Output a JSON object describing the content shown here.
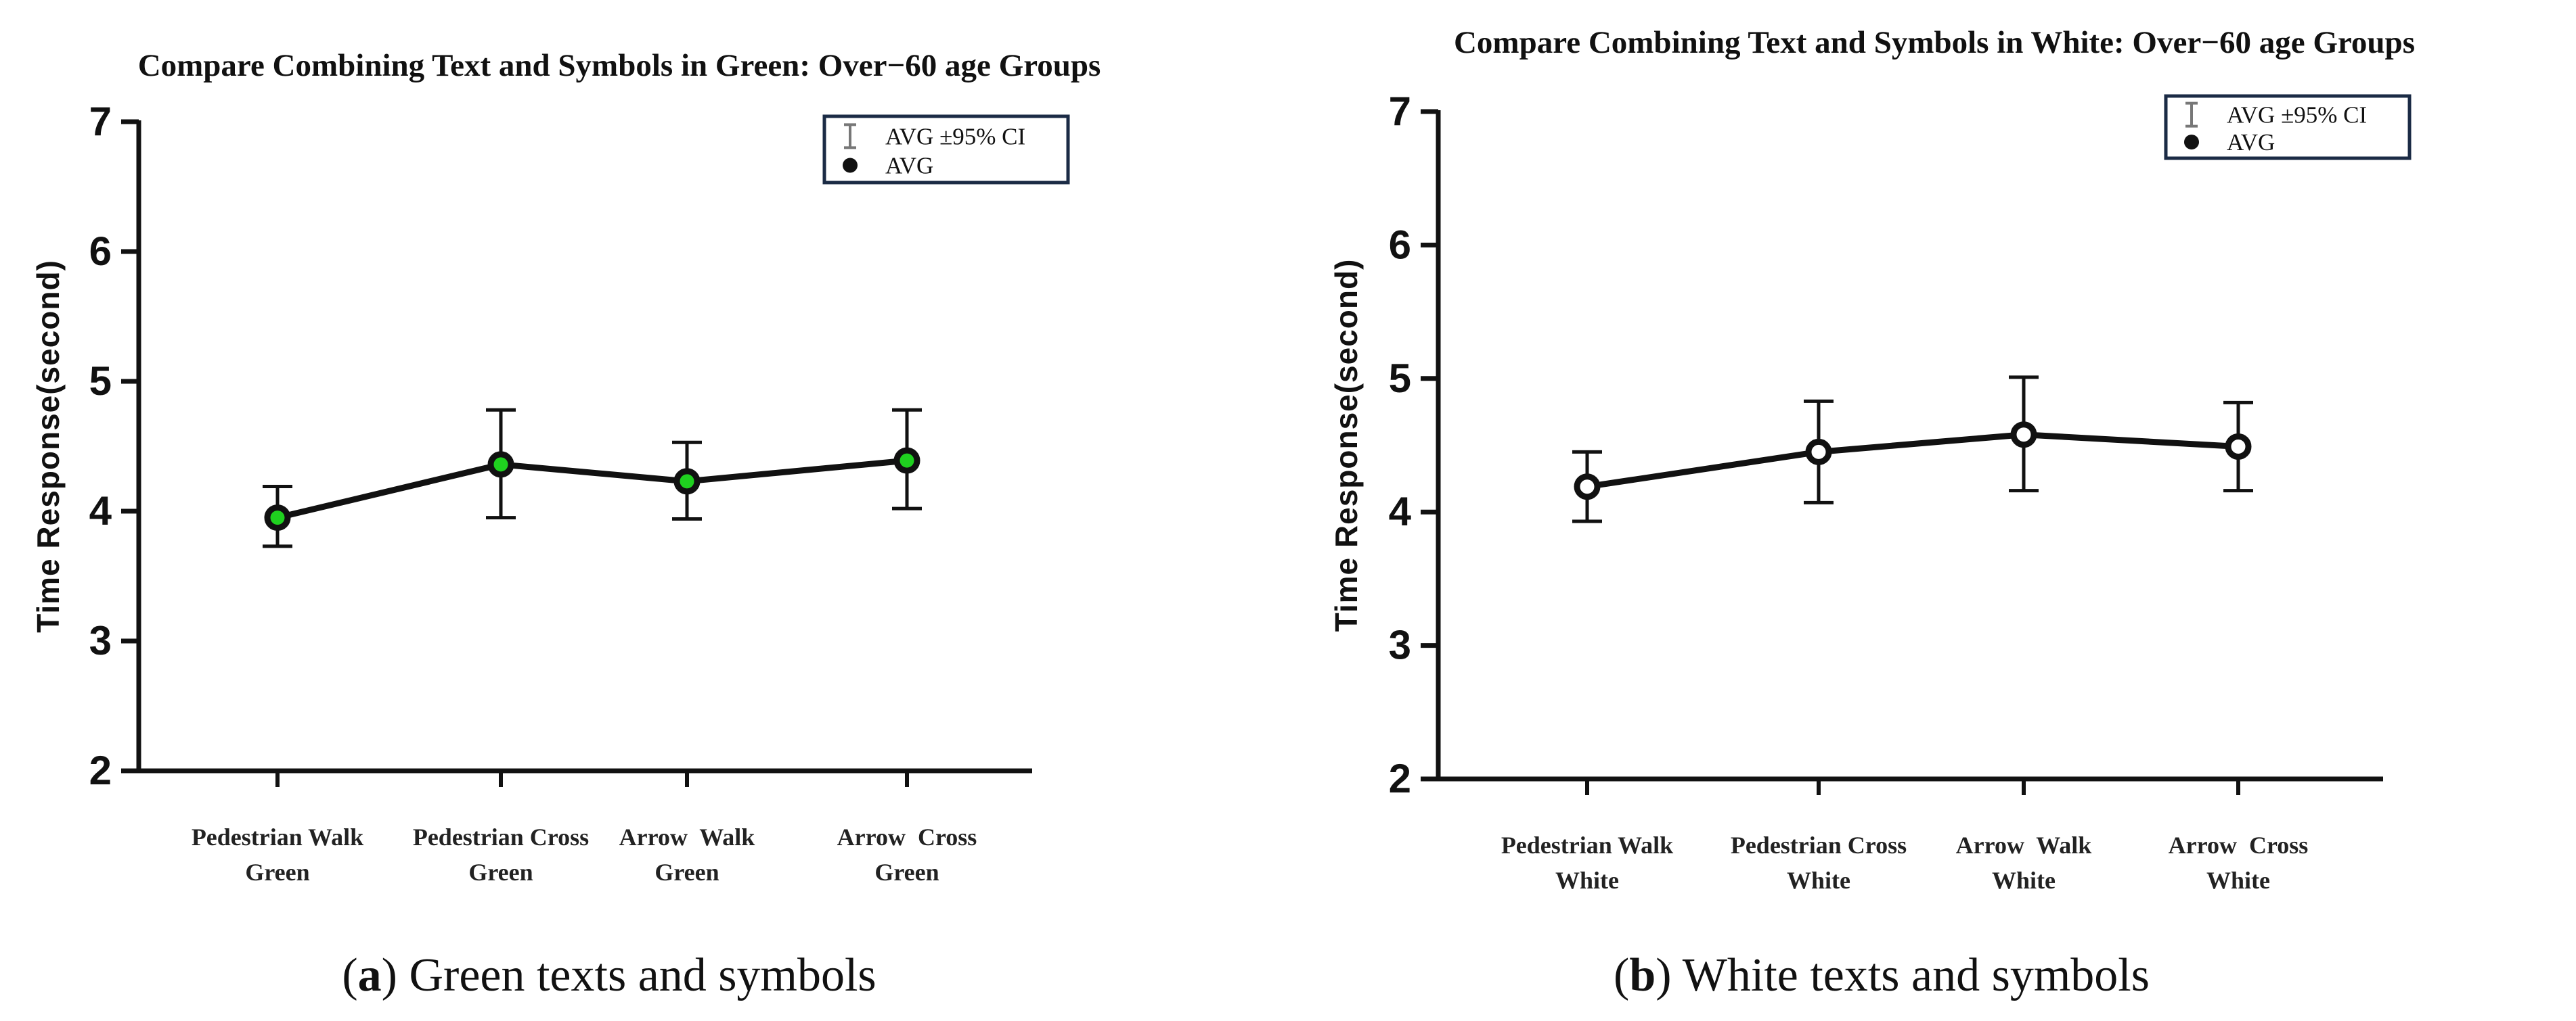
{
  "colors": {
    "axis": "#111111",
    "line": "#111111",
    "green_marker": "#1fd11f",
    "white_marker": "#ffffff",
    "legend_border": "#1b2b45",
    "errorbar_legend": "#777777"
  },
  "legend": {
    "ci_label": "AVG ±95% CI",
    "avg_label": "AVG"
  },
  "chart_data": [
    {
      "type": "line",
      "title": "Compare Combining Text and Symbols in Green: Over−60 age Groups",
      "ylabel": "Time Response(second)",
      "xlabel": "",
      "ylim": [
        2,
        7
      ],
      "yticks": [
        "2",
        "3",
        "4",
        "5",
        "6",
        "7"
      ],
      "categories": [
        [
          "Pedestrian Walk",
          "Green"
        ],
        [
          "Pedestrian Cross",
          "Green"
        ],
        [
          "Arrow  Walk",
          "Green"
        ],
        [
          "Arrow  Cross",
          "Green"
        ]
      ],
      "series": [
        {
          "name": "AVG",
          "marker_fill": "#1fd11f",
          "values": [
            3.95,
            4.36,
            4.23,
            4.39
          ],
          "ci_low": [
            3.73,
            3.95,
            3.94,
            4.02
          ],
          "ci_high": [
            4.19,
            4.78,
            4.53,
            4.78
          ]
        }
      ],
      "legend_position": "top-right",
      "caption_letter": "a",
      "caption_text": "Green texts and symbols"
    },
    {
      "type": "line",
      "title": "Compare Combining Text and Symbols in White: Over−60 age Groups",
      "ylabel": "Time Response(second)",
      "xlabel": "",
      "ylim": [
        2,
        7
      ],
      "yticks": [
        "2",
        "3",
        "4",
        "5",
        "6",
        "7"
      ],
      "categories": [
        [
          "Pedestrian Walk",
          "White"
        ],
        [
          "Pedestrian Cross",
          "White"
        ],
        [
          "Arrow  Walk",
          "White"
        ],
        [
          "Arrow  Cross",
          "White"
        ]
      ],
      "series": [
        {
          "name": "AVG",
          "marker_fill": "#ffffff",
          "values": [
            4.19,
            4.45,
            4.58,
            4.49
          ],
          "ci_low": [
            3.93,
            4.07,
            4.16,
            4.16
          ],
          "ci_high": [
            4.45,
            4.83,
            5.01,
            4.82
          ]
        }
      ],
      "legend_position": "top-right",
      "caption_letter": "b",
      "caption_text": "White texts and symbols"
    }
  ]
}
